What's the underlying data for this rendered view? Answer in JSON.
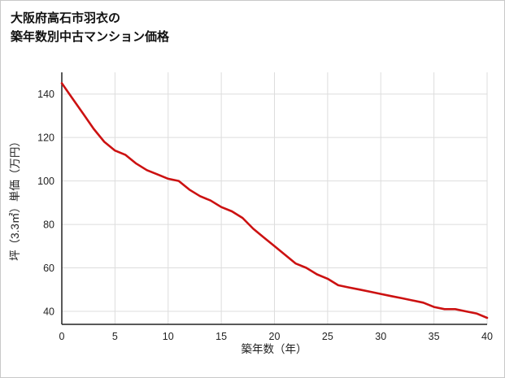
{
  "title": {
    "line1": "大阪府高石市羽衣の",
    "line2": "築年数別中古マンション価格"
  },
  "chart_data": {
    "type": "line",
    "title": "大阪府高石市羽衣の築年数別中古マンション価格",
    "xlabel": "築年数（年）",
    "ylabel": "坪（3.3㎡）単価（万円）",
    "x": [
      0,
      1,
      2,
      3,
      4,
      5,
      6,
      7,
      8,
      9,
      10,
      11,
      12,
      13,
      14,
      15,
      16,
      17,
      18,
      19,
      20,
      21,
      22,
      23,
      24,
      25,
      26,
      27,
      28,
      29,
      30,
      31,
      32,
      33,
      34,
      35,
      36,
      37,
      38,
      39,
      40
    ],
    "y": [
      145,
      138,
      131,
      124,
      118,
      114,
      112,
      108,
      105,
      103,
      101,
      100,
      96,
      93,
      91,
      88,
      86,
      83,
      78,
      74,
      70,
      66,
      62,
      60,
      57,
      55,
      52,
      51,
      50,
      49,
      48,
      47,
      46,
      45,
      44,
      42,
      41,
      41,
      40,
      39,
      37
    ],
    "xlim": [
      0,
      40
    ],
    "ylim": [
      34,
      150
    ],
    "xticks": [
      0,
      5,
      10,
      15,
      20,
      25,
      30,
      35,
      40
    ],
    "yticks": [
      40,
      60,
      80,
      100,
      120,
      140
    ],
    "grid": true,
    "legend": false,
    "line_color": "#cc1111",
    "grid_color": "#dddddd",
    "axis_color": "#222222"
  }
}
